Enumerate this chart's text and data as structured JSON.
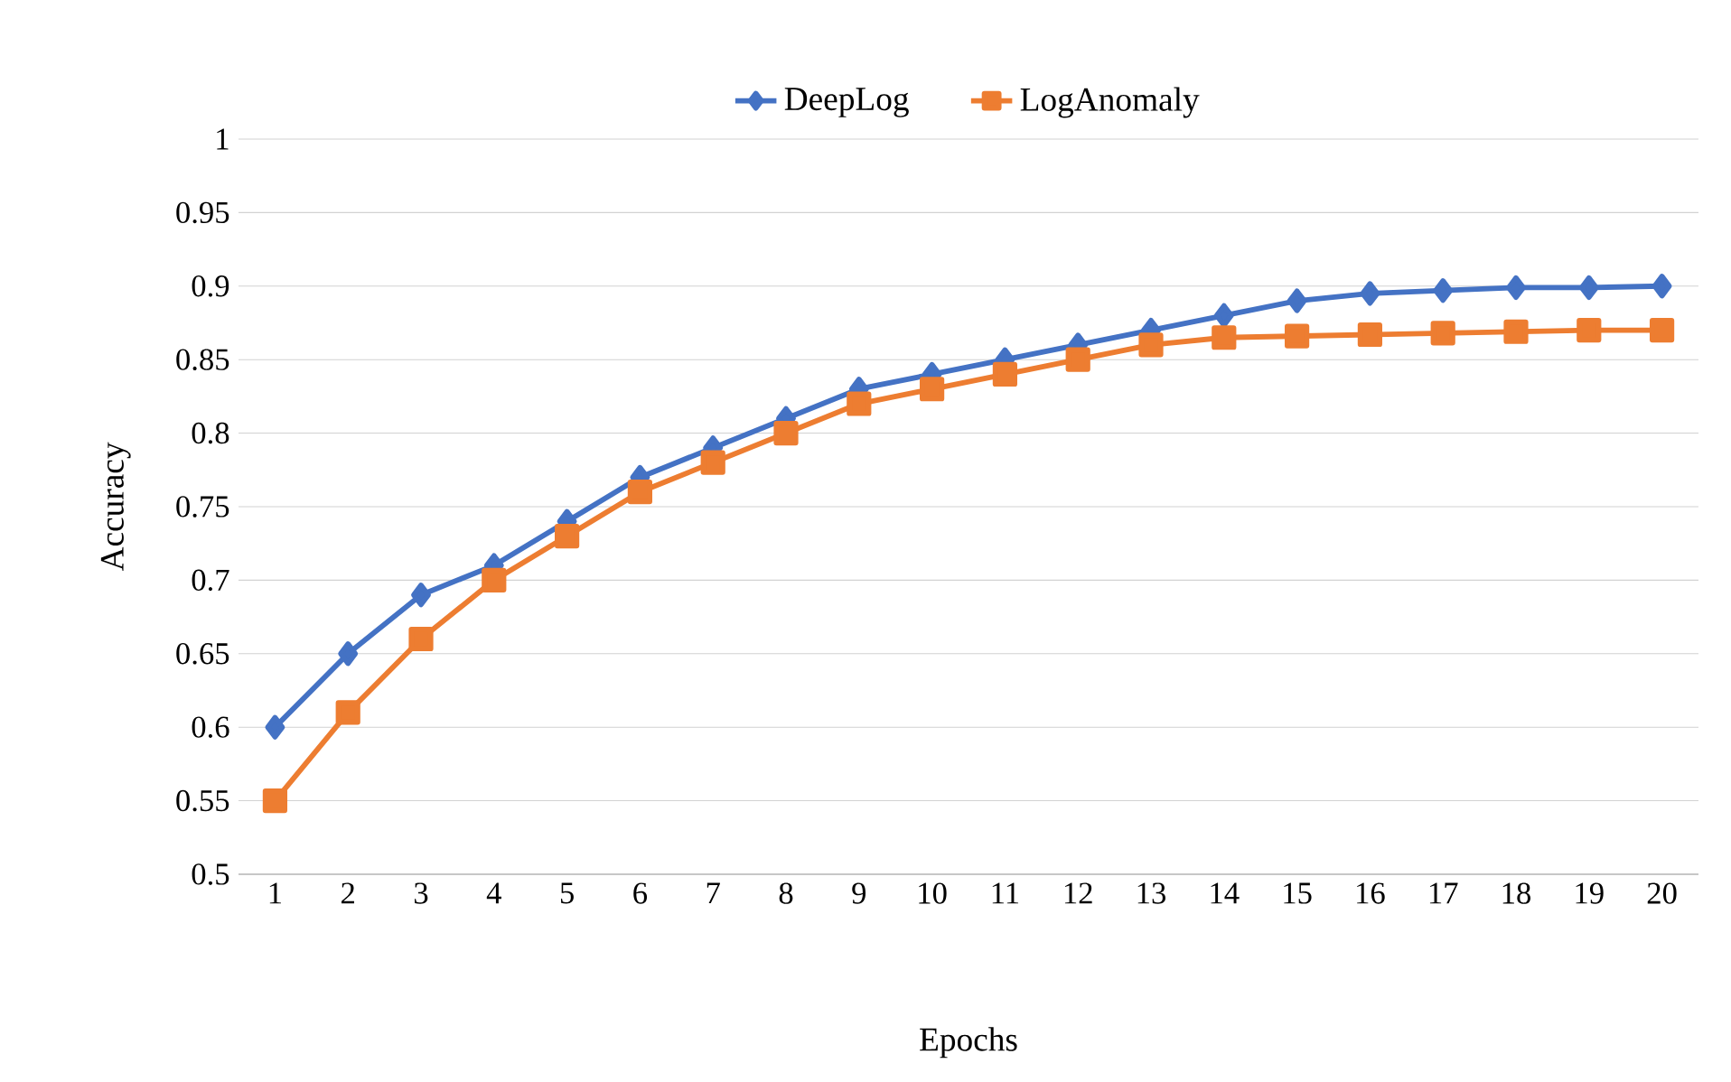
{
  "chart_data": {
    "type": "line",
    "xlabel": "Epochs",
    "ylabel": "Accuracy",
    "categories": [
      "1",
      "2",
      "3",
      "4",
      "5",
      "6",
      "7",
      "8",
      "9",
      "10",
      "11",
      "12",
      "13",
      "14",
      "15",
      "16",
      "17",
      "18",
      "19",
      "20"
    ],
    "series": [
      {
        "name": "DeepLog",
        "color": "#4472c4",
        "marker": "diamond",
        "values": [
          0.6,
          0.65,
          0.69,
          0.71,
          0.74,
          0.77,
          0.79,
          0.81,
          0.83,
          0.84,
          0.85,
          0.86,
          0.87,
          0.88,
          0.89,
          0.895,
          0.897,
          0.899,
          0.899,
          0.9
        ]
      },
      {
        "name": "LogAnomaly",
        "color": "#ed7d31",
        "marker": "square",
        "values": [
          0.55,
          0.61,
          0.66,
          0.7,
          0.73,
          0.76,
          0.78,
          0.8,
          0.82,
          0.83,
          0.84,
          0.85,
          0.86,
          0.865,
          0.866,
          0.867,
          0.868,
          0.869,
          0.87,
          0.87
        ]
      }
    ],
    "ylim": [
      0.5,
      1
    ],
    "yticks": [
      0.5,
      0.55,
      0.6,
      0.65,
      0.7,
      0.75,
      0.8,
      0.85,
      0.9,
      0.95,
      1
    ],
    "grid": "y",
    "legend": "top",
    "line_style": "solid"
  }
}
